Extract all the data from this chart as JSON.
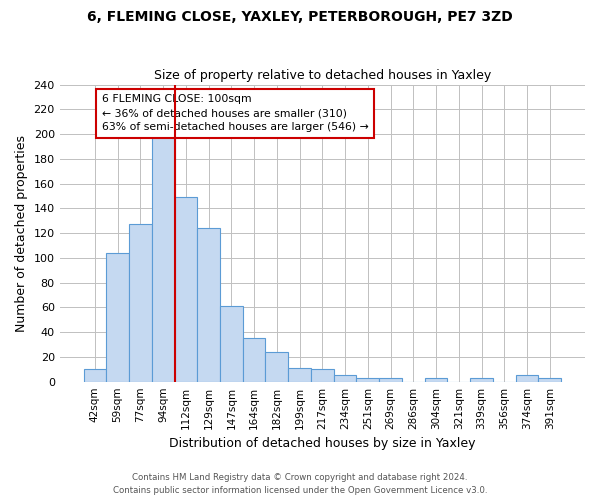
{
  "title": "6, FLEMING CLOSE, YAXLEY, PETERBOROUGH, PE7 3ZD",
  "subtitle": "Size of property relative to detached houses in Yaxley",
  "xlabel": "Distribution of detached houses by size in Yaxley",
  "ylabel": "Number of detached properties",
  "bin_labels": [
    "42sqm",
    "59sqm",
    "77sqm",
    "94sqm",
    "112sqm",
    "129sqm",
    "147sqm",
    "164sqm",
    "182sqm",
    "199sqm",
    "217sqm",
    "234sqm",
    "251sqm",
    "269sqm",
    "286sqm",
    "304sqm",
    "321sqm",
    "339sqm",
    "356sqm",
    "374sqm",
    "391sqm"
  ],
  "bar_heights": [
    10,
    104,
    127,
    200,
    149,
    124,
    61,
    35,
    24,
    11,
    10,
    5,
    3,
    3,
    0,
    3,
    0,
    3,
    0,
    5,
    3
  ],
  "bar_color": "#c5d9f1",
  "bar_edge_color": "#5b9bd5",
  "vline_x_index": 3.5,
  "vline_color": "#cc0000",
  "annotation_line1": "6 FLEMING CLOSE: 100sqm",
  "annotation_line2": "← 36% of detached houses are smaller (310)",
  "annotation_line3": "63% of semi-detached houses are larger (546) →",
  "annotation_box_color": "white",
  "annotation_box_edge_color": "#cc0000",
  "ylim": [
    0,
    240
  ],
  "yticks": [
    0,
    20,
    40,
    60,
    80,
    100,
    120,
    140,
    160,
    180,
    200,
    220,
    240
  ],
  "footer_line1": "Contains HM Land Registry data © Crown copyright and database right 2024.",
  "footer_line2": "Contains public sector information licensed under the Open Government Licence v3.0.",
  "background_color": "#ffffff",
  "grid_color": "#c0c0c0"
}
